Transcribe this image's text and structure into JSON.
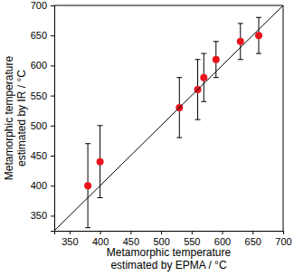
{
  "chart_data": {
    "type": "scatter",
    "xlabel": [
      "Metamorphic temperature",
      "estimated by EPMA / °C"
    ],
    "ylabel": [
      "Metamorphic temperature",
      "estimated by IR / °C"
    ],
    "xlim": [
      325,
      700
    ],
    "xticks": [
      350,
      400,
      450,
      500,
      550,
      600,
      650,
      700
    ],
    "ylim": [
      325,
      700
    ],
    "yticks": [
      350,
      400,
      450,
      500,
      550,
      600,
      650,
      700
    ],
    "grid": false,
    "series": [
      {
        "type": "scatter",
        "color": "#e8141c",
        "marker": "circle",
        "x": [
          380,
          400,
          530,
          560,
          570,
          590,
          630,
          660
        ],
        "values": [
          400,
          440,
          530,
          560,
          580,
          610,
          640,
          650
        ],
        "errors": [
          70,
          60,
          50,
          50,
          40,
          30,
          30,
          30
        ]
      },
      {
        "type": "line",
        "color": "#000000",
        "line_style": "solid",
        "x": [
          325,
          700
        ],
        "values": [
          325,
          700
        ]
      }
    ]
  }
}
